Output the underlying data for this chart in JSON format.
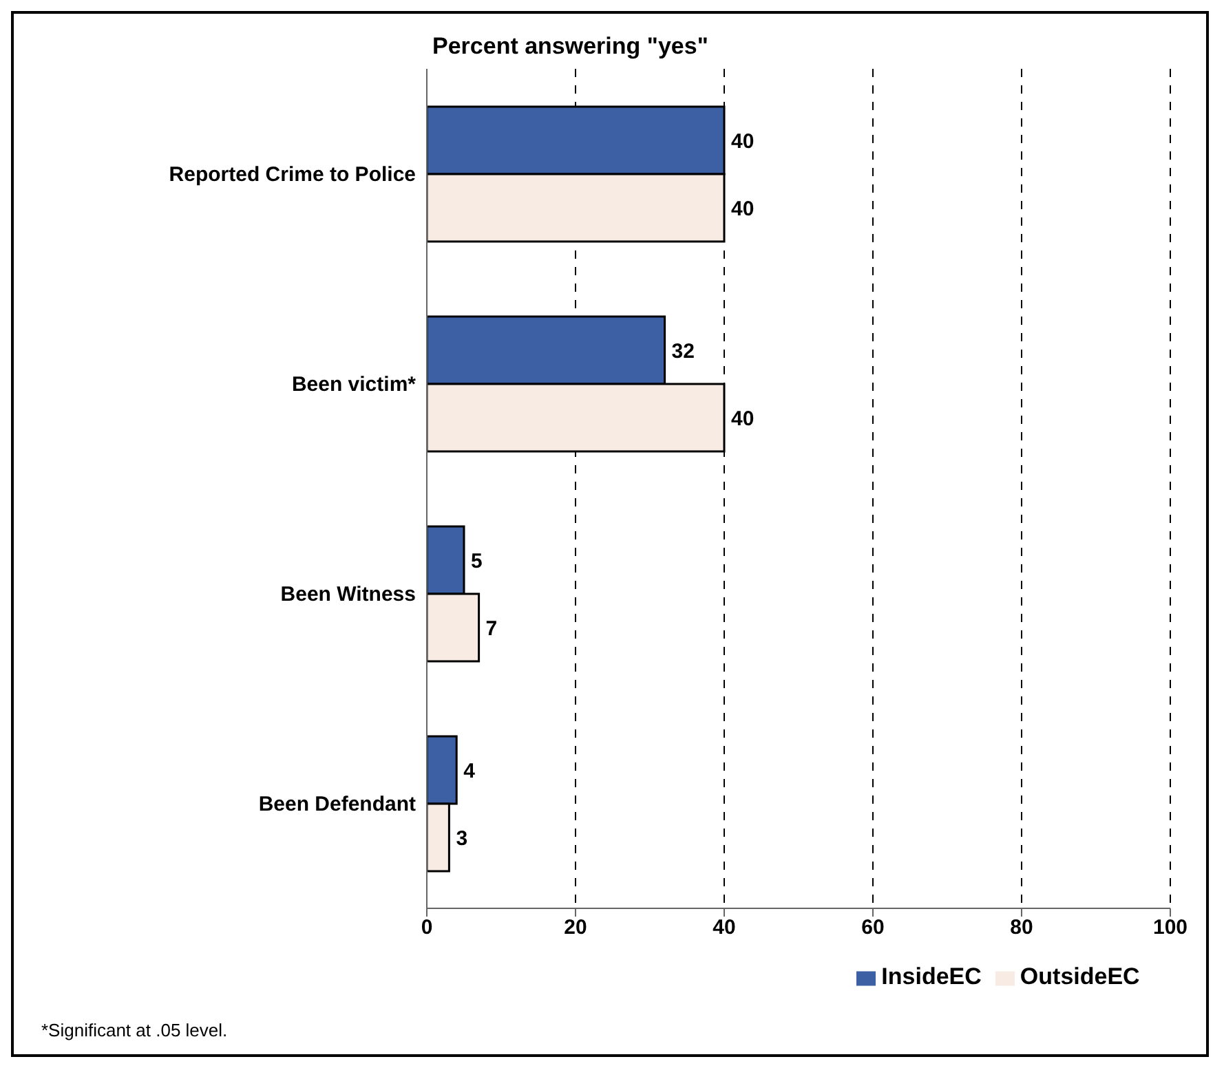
{
  "chart_data": {
    "type": "bar",
    "orientation": "horizontal",
    "title": "Percent answering \"yes\"",
    "categories": [
      "Reported Crime to Police",
      "Been victim*",
      "Been Witness",
      "Been Defendant"
    ],
    "series": [
      {
        "name": "InsideEC",
        "color": "#3d5fa3",
        "values": [
          40,
          32,
          5,
          4
        ]
      },
      {
        "name": "OutsideEC",
        "color": "#f7ebe4",
        "values": [
          40,
          40,
          7,
          3
        ]
      }
    ],
    "xlim": [
      0,
      100
    ],
    "xticks": [
      0,
      20,
      40,
      60,
      80,
      100
    ],
    "grid": "x",
    "legend": "bottom",
    "data_labels": true,
    "annotations": [
      "*Significant at .05 level."
    ]
  }
}
